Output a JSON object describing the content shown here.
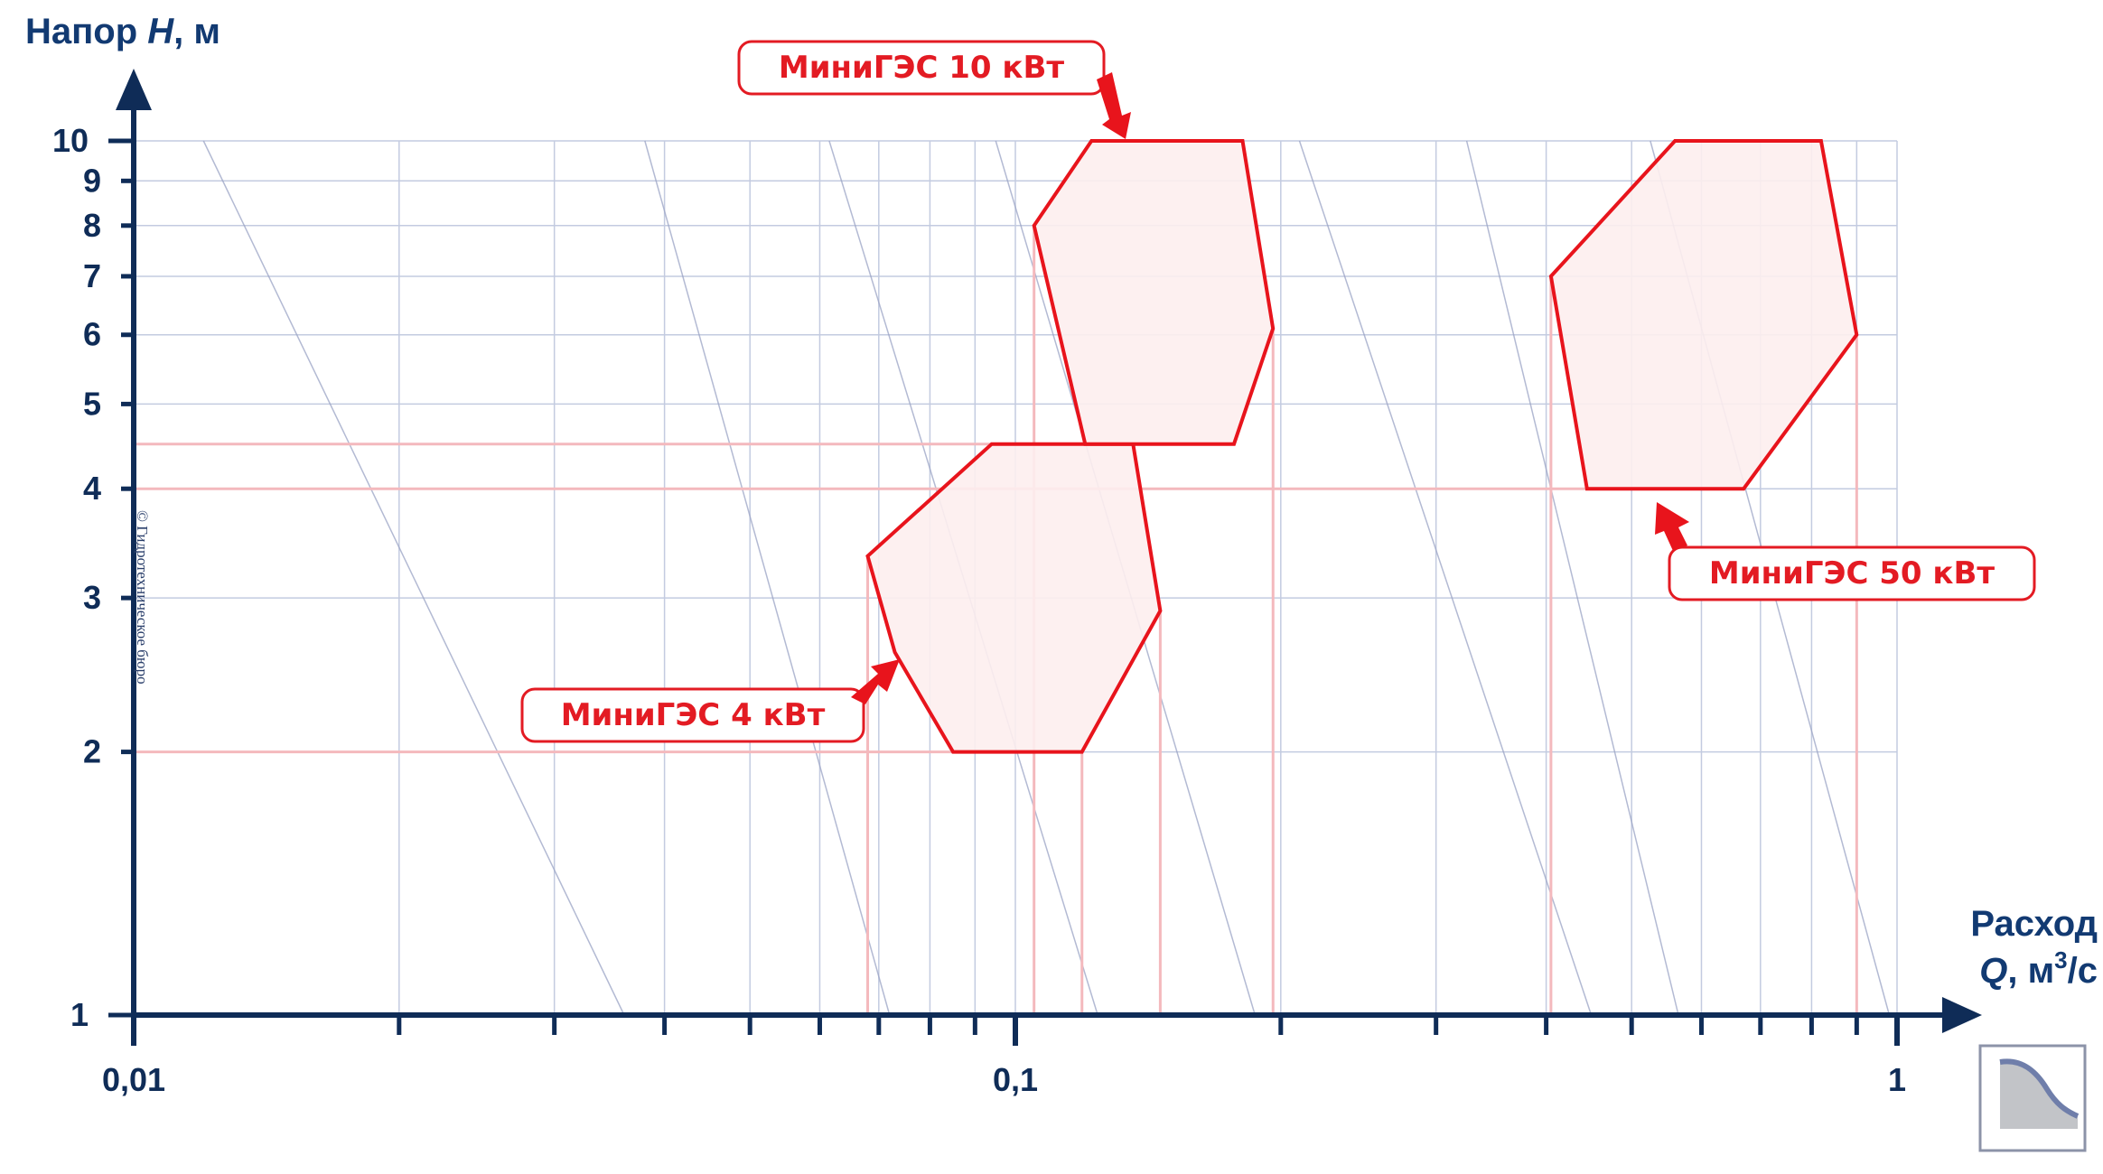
{
  "chart_data": {
    "type": "area",
    "scale": "log-log",
    "x_axis": {
      "title_line1": "Расход",
      "title_line2_prefix": "Q",
      "title_line2_unit": ", м",
      "title_line2_sup": "3",
      "title_line2_suffix": "/с",
      "range": [
        0.01,
        1
      ],
      "tick_labels": [
        {
          "value": 0.01,
          "label": "0,01"
        },
        {
          "value": 0.1,
          "label": "0,1"
        },
        {
          "value": 1,
          "label": "1"
        }
      ],
      "minor_ticks": [
        0.02,
        0.03,
        0.04,
        0.05,
        0.06,
        0.07,
        0.08,
        0.09,
        0.2,
        0.3,
        0.4,
        0.5,
        0.6,
        0.7,
        0.8,
        0.9
      ]
    },
    "y_axis": {
      "title_prefix": "Напор ",
      "title_var": "H",
      "title_suffix": ", м",
      "range": [
        1,
        10
      ],
      "tick_labels": [
        {
          "value": 1,
          "label": "1"
        },
        {
          "value": 2,
          "label": "2"
        },
        {
          "value": 3,
          "label": "3"
        },
        {
          "value": 4,
          "label": "4"
        },
        {
          "value": 5,
          "label": "5"
        },
        {
          "value": 6,
          "label": "6"
        },
        {
          "value": 7,
          "label": "7"
        },
        {
          "value": 8,
          "label": "8"
        },
        {
          "value": 9,
          "label": "9"
        },
        {
          "value": 10,
          "label": "10"
        }
      ]
    },
    "grid": true,
    "diagonal_power_lines": [
      {
        "q_at_h10": 0.012,
        "q_at_h1": 0.036
      },
      {
        "q_at_h10": 0.038,
        "q_at_h1": 0.072
      },
      {
        "q_at_h10": 0.0615,
        "q_at_h1": 0.124
      },
      {
        "q_at_h10": 0.095,
        "q_at_h1": 0.187
      },
      {
        "q_at_h10": 0.21,
        "q_at_h1": 0.45
      },
      {
        "q_at_h10": 0.325,
        "q_at_h1": 0.565
      },
      {
        "q_at_h10": 0.525,
        "q_at_h1": 0.98
      }
    ],
    "series": [
      {
        "name": "МиниГЭС 4 кВт",
        "polygon": [
          [
            0.085,
            2
          ],
          [
            0.119,
            2
          ],
          [
            0.146,
            2.9
          ],
          [
            0.136,
            4.5
          ],
          [
            0.094,
            4.5
          ],
          [
            0.068,
            3.35
          ],
          [
            0.073,
            2.6
          ]
        ],
        "guides": {
          "h": [
            2,
            4.5
          ],
          "q": [
            0.068,
            0.119,
            0.146
          ]
        }
      },
      {
        "name": "МиниГЭС 10 кВт",
        "polygon": [
          [
            0.12,
            4.5
          ],
          [
            0.177,
            4.5
          ],
          [
            0.196,
            6.1
          ],
          [
            0.181,
            10
          ],
          [
            0.122,
            10
          ],
          [
            0.105,
            8
          ]
        ],
        "guides": {
          "h": [],
          "q": [
            0.105,
            0.196
          ]
        }
      },
      {
        "name": "МиниГЭС 50 кВт",
        "polygon": [
          [
            0.445,
            4
          ],
          [
            0.67,
            4
          ],
          [
            0.9,
            6
          ],
          [
            0.82,
            10
          ],
          [
            0.56,
            10
          ],
          [
            0.405,
            7
          ]
        ],
        "guides": {
          "h": [
            4
          ],
          "q": [
            0.405,
            0.9
          ]
        }
      }
    ],
    "annotations": [
      {
        "text": "МиниГЭС 10 кВт",
        "target": "series 1 top edge"
      },
      {
        "text": "МиниГЭС 50 кВт",
        "target": "series 2 bottom edge"
      },
      {
        "text": "МиниГЭС 4 кВт",
        "target": "series 0 left edge"
      }
    ],
    "watermark": "© Гидротехническое бюро",
    "colors": {
      "axis": "#0f2c57",
      "grid": "#c3cbe0",
      "diagonal": "#9aa3c5",
      "region_stroke": "#e8141c",
      "region_fill": "#fdeeee",
      "guide": "#f4b9bd",
      "callout_text": "#e31b23"
    }
  },
  "logo": {
    "icon": "flow-curve-icon"
  }
}
